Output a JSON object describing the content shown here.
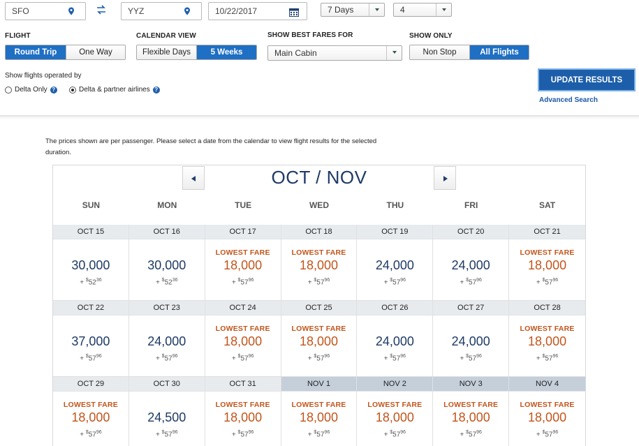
{
  "search": {
    "origin": "SFO",
    "destination": "YYZ",
    "date": "10/22/2017",
    "duration": "7 Days",
    "passengers": "4"
  },
  "flight": {
    "label": "FLIGHT",
    "options": [
      "Round Trip",
      "One Way"
    ],
    "selected": "Round Trip"
  },
  "calendar_view": {
    "label": "CALENDAR VIEW",
    "options": [
      "Flexible Days",
      "5 Weeks"
    ],
    "selected": "5 Weeks"
  },
  "best_fares": {
    "label": "SHOW BEST FARES FOR",
    "value": "Main Cabin"
  },
  "show_only": {
    "label": "SHOW ONLY",
    "options": [
      "Non Stop",
      "All Flights"
    ],
    "selected": "All Flights"
  },
  "operated_by": {
    "label": "Show flights operated by",
    "options": [
      "Delta Only",
      "Delta & partner airlines"
    ],
    "selected": "Delta & partner airlines"
  },
  "actions": {
    "update": "UPDATE RESULTS",
    "advanced": "Advanced Search"
  },
  "note": "The prices shown are per passenger. Please select a date from the calendar to view flight results for the selected duration.",
  "calendar": {
    "title": "OCT / NOV",
    "weekdays": [
      "SUN",
      "MON",
      "TUE",
      "WED",
      "THU",
      "FRI",
      "SAT"
    ],
    "lowest_label": "LOWEST FARE",
    "days": [
      {
        "date": "OCT 15",
        "miles": "30,000",
        "tax_dollars": "52",
        "tax_cents": "36",
        "lowest": false,
        "nov": false
      },
      {
        "date": "OCT 16",
        "miles": "30,000",
        "tax_dollars": "52",
        "tax_cents": "36",
        "lowest": false,
        "nov": false
      },
      {
        "date": "OCT 17",
        "miles": "18,000",
        "tax_dollars": "57",
        "tax_cents": "96",
        "lowest": true,
        "nov": false
      },
      {
        "date": "OCT 18",
        "miles": "18,000",
        "tax_dollars": "57",
        "tax_cents": "96",
        "lowest": true,
        "nov": false
      },
      {
        "date": "OCT 19",
        "miles": "24,000",
        "tax_dollars": "57",
        "tax_cents": "96",
        "lowest": false,
        "nov": false
      },
      {
        "date": "OCT 20",
        "miles": "24,000",
        "tax_dollars": "57",
        "tax_cents": "96",
        "lowest": false,
        "nov": false
      },
      {
        "date": "OCT 21",
        "miles": "18,000",
        "tax_dollars": "57",
        "tax_cents": "96",
        "lowest": true,
        "nov": false
      },
      {
        "date": "OCT 22",
        "miles": "37,000",
        "tax_dollars": "57",
        "tax_cents": "96",
        "lowest": false,
        "nov": false
      },
      {
        "date": "OCT 23",
        "miles": "24,000",
        "tax_dollars": "57",
        "tax_cents": "96",
        "lowest": false,
        "nov": false
      },
      {
        "date": "OCT 24",
        "miles": "18,000",
        "tax_dollars": "57",
        "tax_cents": "96",
        "lowest": true,
        "nov": false
      },
      {
        "date": "OCT 25",
        "miles": "18,000",
        "tax_dollars": "57",
        "tax_cents": "96",
        "lowest": true,
        "nov": false
      },
      {
        "date": "OCT 26",
        "miles": "24,000",
        "tax_dollars": "57",
        "tax_cents": "96",
        "lowest": false,
        "nov": false
      },
      {
        "date": "OCT 27",
        "miles": "24,000",
        "tax_dollars": "57",
        "tax_cents": "96",
        "lowest": false,
        "nov": false
      },
      {
        "date": "OCT 28",
        "miles": "18,000",
        "tax_dollars": "57",
        "tax_cents": "96",
        "lowest": true,
        "nov": false
      },
      {
        "date": "OCT 29",
        "miles": "18,000",
        "tax_dollars": "57",
        "tax_cents": "96",
        "lowest": true,
        "nov": false
      },
      {
        "date": "OCT 30",
        "miles": "24,500",
        "tax_dollars": "57",
        "tax_cents": "96",
        "lowest": false,
        "nov": false
      },
      {
        "date": "OCT 31",
        "miles": "18,000",
        "tax_dollars": "57",
        "tax_cents": "96",
        "lowest": true,
        "nov": false
      },
      {
        "date": "NOV 1",
        "miles": "18,000",
        "tax_dollars": "57",
        "tax_cents": "96",
        "lowest": true,
        "nov": true
      },
      {
        "date": "NOV 2",
        "miles": "18,000",
        "tax_dollars": "57",
        "tax_cents": "96",
        "lowest": true,
        "nov": true
      },
      {
        "date": "NOV 3",
        "miles": "18,000",
        "tax_dollars": "57",
        "tax_cents": "96",
        "lowest": true,
        "nov": true
      },
      {
        "date": "NOV 4",
        "miles": "18,000",
        "tax_dollars": "57",
        "tax_cents": "96",
        "lowest": true,
        "nov": true
      }
    ]
  },
  "colors": {
    "accent": "#1f6fc4",
    "lowest_fare": "#c2551b",
    "miles": "#1e3a66"
  }
}
